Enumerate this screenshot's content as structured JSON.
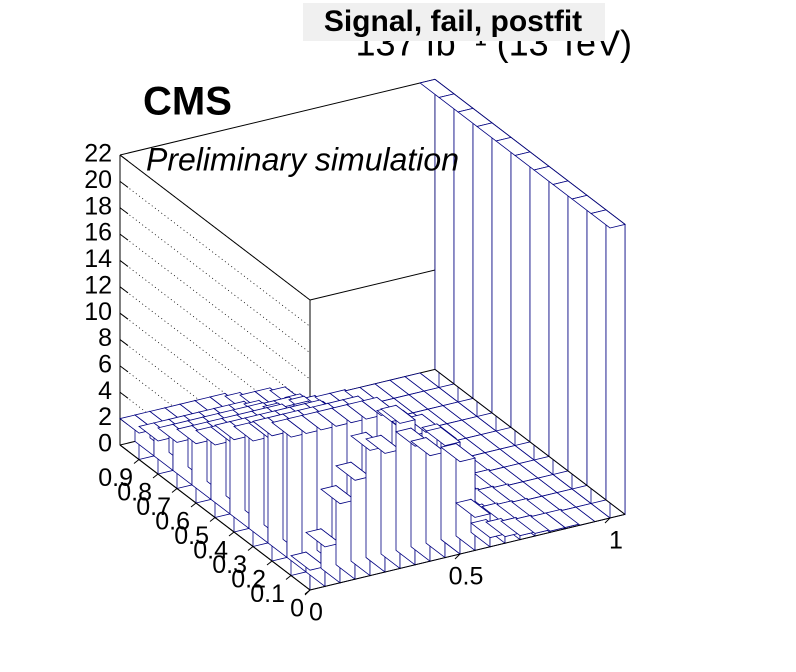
{
  "chart_data": {
    "type": "lego",
    "title": "Signal, fail, postfit",
    "lumi": "137 fb⁻¹ (13 TeV)",
    "experiment": "CMS",
    "subtitle": "Preliminary simulation",
    "color": "#000080",
    "xbins": [
      0,
      0.05,
      0.1,
      0.15,
      0.2,
      0.25,
      0.3,
      0.35,
      0.4,
      0.45,
      0.5,
      0.55,
      0.6,
      0.65,
      0.7,
      0.75,
      0.8,
      0.85,
      0.9,
      0.95,
      1,
      1.05
    ],
    "ybins": [
      0,
      0.1,
      0.2,
      0.3,
      0.4,
      0.5,
      0.6,
      0.7,
      0.8,
      0.9,
      1
    ],
    "values": [
      [
        1.5,
        3,
        6,
        7.5,
        9.5,
        9,
        11,
        9,
        8,
        8.5,
        7,
        2.5,
        0.7,
        0.5,
        0.3,
        0.2,
        0.1,
        0.1,
        0,
        0,
        22
      ],
      [
        10.5,
        10.5,
        10.5,
        10.5,
        10.5,
        10.5,
        10.5,
        9.5,
        8.4,
        8.4,
        7.4,
        3.2,
        1.1,
        0.5,
        0.3,
        0.2,
        0.1,
        0,
        0,
        0,
        22
      ],
      [
        9.5,
        9.5,
        9.5,
        9.5,
        9.5,
        9.5,
        9.5,
        8.6,
        7.6,
        7.6,
        6.7,
        2.9,
        1,
        0.5,
        0.3,
        0.2,
        0.1,
        0,
        0,
        0,
        22
      ],
      [
        8,
        8,
        8,
        8,
        8,
        8,
        8,
        7.2,
        6.4,
        6.4,
        5.6,
        2.4,
        0.8,
        0.4,
        0.2,
        0.2,
        0.1,
        0,
        0,
        0,
        22
      ],
      [
        7,
        7,
        7,
        7,
        7,
        7,
        7,
        6.3,
        5.6,
        5.6,
        4.9,
        2.1,
        0.7,
        0.4,
        0.2,
        0.1,
        0.1,
        0,
        0,
        0,
        22
      ],
      [
        5.5,
        5.5,
        5.5,
        5.5,
        5.5,
        5.5,
        5.5,
        5,
        4.4,
        4.4,
        3.9,
        1.7,
        0.6,
        0.3,
        0.2,
        0.1,
        0.1,
        0,
        0,
        0,
        22
      ],
      [
        4.5,
        4.5,
        4.5,
        4.5,
        4.5,
        4.5,
        4.5,
        4.1,
        3.6,
        3.6,
        3.2,
        1.4,
        0.5,
        0.2,
        0.1,
        0.1,
        0,
        0,
        0,
        0,
        22
      ],
      [
        3.5,
        3.5,
        3.5,
        3.5,
        3.5,
        3.5,
        3.5,
        3.2,
        2.8,
        2.8,
        2.5,
        1.1,
        0.4,
        0.2,
        0.1,
        0.1,
        0,
        0,
        0,
        0,
        22
      ],
      [
        2.5,
        2.5,
        2.5,
        2.5,
        2.5,
        2.5,
        2.5,
        2.3,
        2,
        2,
        1.8,
        0.8,
        0.3,
        0.1,
        0.1,
        0,
        0,
        0,
        0,
        0,
        22
      ],
      [
        2,
        2,
        2,
        2,
        2,
        2,
        2,
        1.8,
        1.6,
        1.6,
        1.4,
        0.6,
        0.2,
        0.1,
        0.1,
        0,
        0,
        0,
        0,
        0,
        22
      ]
    ],
    "xlim": [
      0,
      1.05
    ],
    "ylim": [
      0,
      1
    ],
    "zlim": [
      0,
      22
    ],
    "xticks": [
      0,
      0.5,
      1
    ],
    "yticks": [
      0,
      0.1,
      0.2,
      0.3,
      0.4,
      0.5,
      0.6,
      0.7,
      0.8,
      0.9
    ],
    "zticks": [
      0,
      2,
      4,
      6,
      8,
      10,
      12,
      14,
      16,
      18,
      20,
      22
    ],
    "grid": true
  }
}
